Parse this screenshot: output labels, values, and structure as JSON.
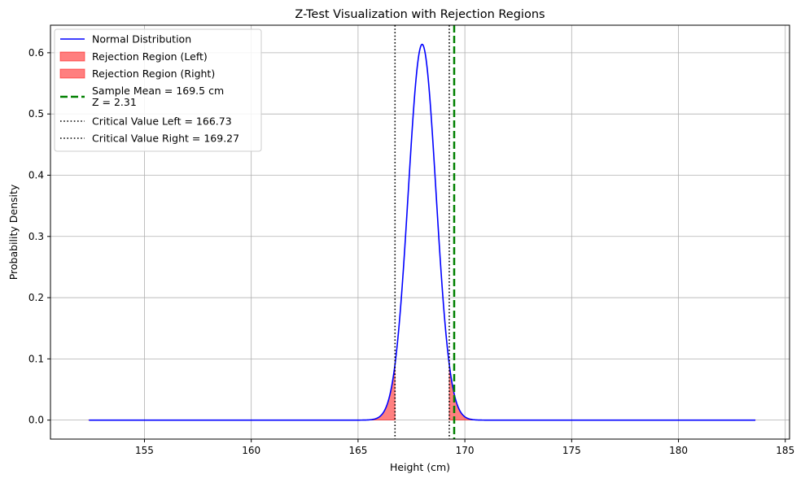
{
  "chart_data": {
    "type": "line",
    "title": "Z-Test Visualization with Rejection Regions",
    "xlabel": "Height (cm)",
    "ylabel": "Probability Density",
    "xlim": [
      150.6,
      185.2
    ],
    "ylim": [
      -0.031,
      0.645
    ],
    "xticks": [
      155,
      160,
      165,
      170,
      175,
      180,
      185
    ],
    "yticks": [
      0.0,
      0.1,
      0.2,
      0.3,
      0.4,
      0.5,
      0.6
    ],
    "xtick_labels": [
      "155",
      "160",
      "165",
      "170",
      "175",
      "180",
      "185"
    ],
    "ytick_labels": [
      "0.0",
      "0.1",
      "0.2",
      "0.3",
      "0.4",
      "0.5",
      "0.6"
    ],
    "grid": true,
    "legend_position": "upper-left",
    "distribution": {
      "name": "Normal Distribution",
      "mean": 168,
      "std": 0.65,
      "x_range": [
        152.4,
        183.6
      ],
      "color": "#0000ff"
    },
    "rejection_regions": [
      {
        "name": "Rejection Region (Left)",
        "from": 152.4,
        "to": 166.73,
        "color": "#ff0000",
        "alpha": 0.5
      },
      {
        "name": "Rejection Region (Right)",
        "from": 169.27,
        "to": 183.6,
        "color": "#ff0000",
        "alpha": 0.5
      }
    ],
    "sample_mean": {
      "label_line1": "Sample Mean = 169.5 cm",
      "label_line2": "Z = 2.31",
      "x": 169.5,
      "color": "#008000"
    },
    "critical_values": [
      {
        "name": "Critical Value Left = 166.73",
        "x": 166.73,
        "color": "#000000"
      },
      {
        "name": "Critical Value Right = 169.27",
        "x": 169.27,
        "color": "#000000"
      }
    ]
  }
}
